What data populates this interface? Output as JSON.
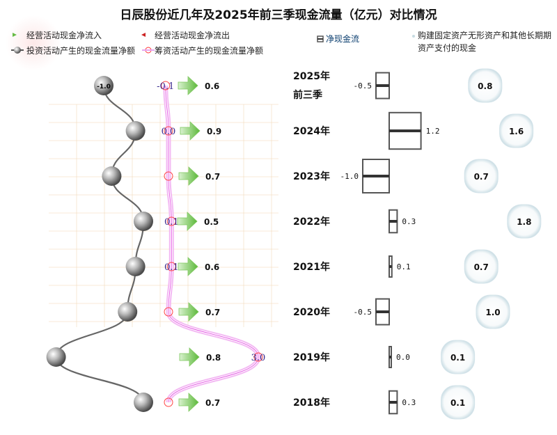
{
  "chart_data": {
    "type": "mixed",
    "title": "日辰股份近几年及2025年前三季现金流量（亿元）对比情况",
    "categories": [
      "2025年前三季",
      "2024年",
      "2023年",
      "2022年",
      "2021年",
      "2020年",
      "2019年",
      "2018年"
    ],
    "category_lines": [
      [
        "2025年",
        "前三季"
      ],
      [
        "2024年"
      ],
      [
        "2023年"
      ],
      [
        "2022年"
      ],
      [
        "2021年"
      ],
      [
        "2020年"
      ],
      [
        "2019年"
      ],
      [
        "2018年"
      ]
    ],
    "series": [
      {
        "key": "operating_in",
        "name": "经营活动现金净流入",
        "values": [
          0.6,
          0.9,
          0.7,
          0.5,
          0.6,
          0.7,
          0.8,
          0.7
        ],
        "labels": [
          "0.6",
          "0.9",
          "0.7",
          "0.5",
          "0.6",
          "0.7",
          "0.8",
          "0.7"
        ]
      },
      {
        "key": "operating_out",
        "name": "经营活动现金净流出",
        "values": [
          null,
          null,
          null,
          null,
          null,
          null,
          null,
          null
        ]
      },
      {
        "key": "investing",
        "name": "投资活动产生的现金流量净额",
        "values": [
          -1.0,
          -0.6,
          -0.9,
          -0.5,
          -0.6,
          -0.7,
          -1.6,
          -0.5
        ],
        "labels": [
          "-1.0",
          "",
          "",
          "",
          "",
          "",
          "",
          ""
        ]
      },
      {
        "key": "financing",
        "name": "筹资活动产生的现金流量净额",
        "values": [
          -0.1,
          0.0,
          0.0,
          0.1,
          0.1,
          0.0,
          3.0,
          0.0
        ],
        "labels": [
          "-0.1",
          "0.0",
          "",
          "0.1",
          "0.1",
          "",
          "3.0",
          ""
        ]
      },
      {
        "key": "net",
        "name": "净现金流",
        "values": [
          -0.5,
          1.2,
          -1.0,
          0.3,
          0.1,
          -0.5,
          0.0,
          0.3
        ],
        "labels": [
          "-0.5",
          "1.2",
          "-1.0",
          "0.3",
          "0.1",
          "-0.5",
          "0.0",
          "0.3"
        ]
      },
      {
        "key": "capex",
        "name": "购建固定资产无形资产和其他长期资产支付的现金",
        "values": [
          0.8,
          1.6,
          0.7,
          1.8,
          0.7,
          1.0,
          0.1,
          0.1
        ],
        "labels": [
          "0.8",
          "1.6",
          "0.7",
          "1.8",
          "0.7",
          "1.0",
          "0.1",
          "0.1"
        ]
      }
    ],
    "legend": [
      {
        "name": "经营活动现金净流入",
        "color": "#66bb44"
      },
      {
        "name": "经营活动现金净流出",
        "color": "#cc2222"
      },
      {
        "name": "投资活动产生的现金流量净额",
        "color": "#555555"
      },
      {
        "name": "筹资活动产生的现金流量净额",
        "color": "#e040e0"
      },
      {
        "name": "净现金流",
        "color": "#444444"
      },
      {
        "name": "购建固定资产无形资产和其他长期资产支付的现金",
        "color": "#c7dbe2"
      }
    ],
    "legend_lines": {
      "capex": [
        "购建固定资产无形资产和其他长期期",
        "资产支付的现金"
      ]
    },
    "colors": {
      "operating_in": "#66bb44",
      "operating_out": "#cc2222",
      "investing": "#555555",
      "financing": "#e040e0",
      "net": "#444444",
      "capex": "#c7dbe2",
      "grid": "#f3d9b8"
    }
  }
}
